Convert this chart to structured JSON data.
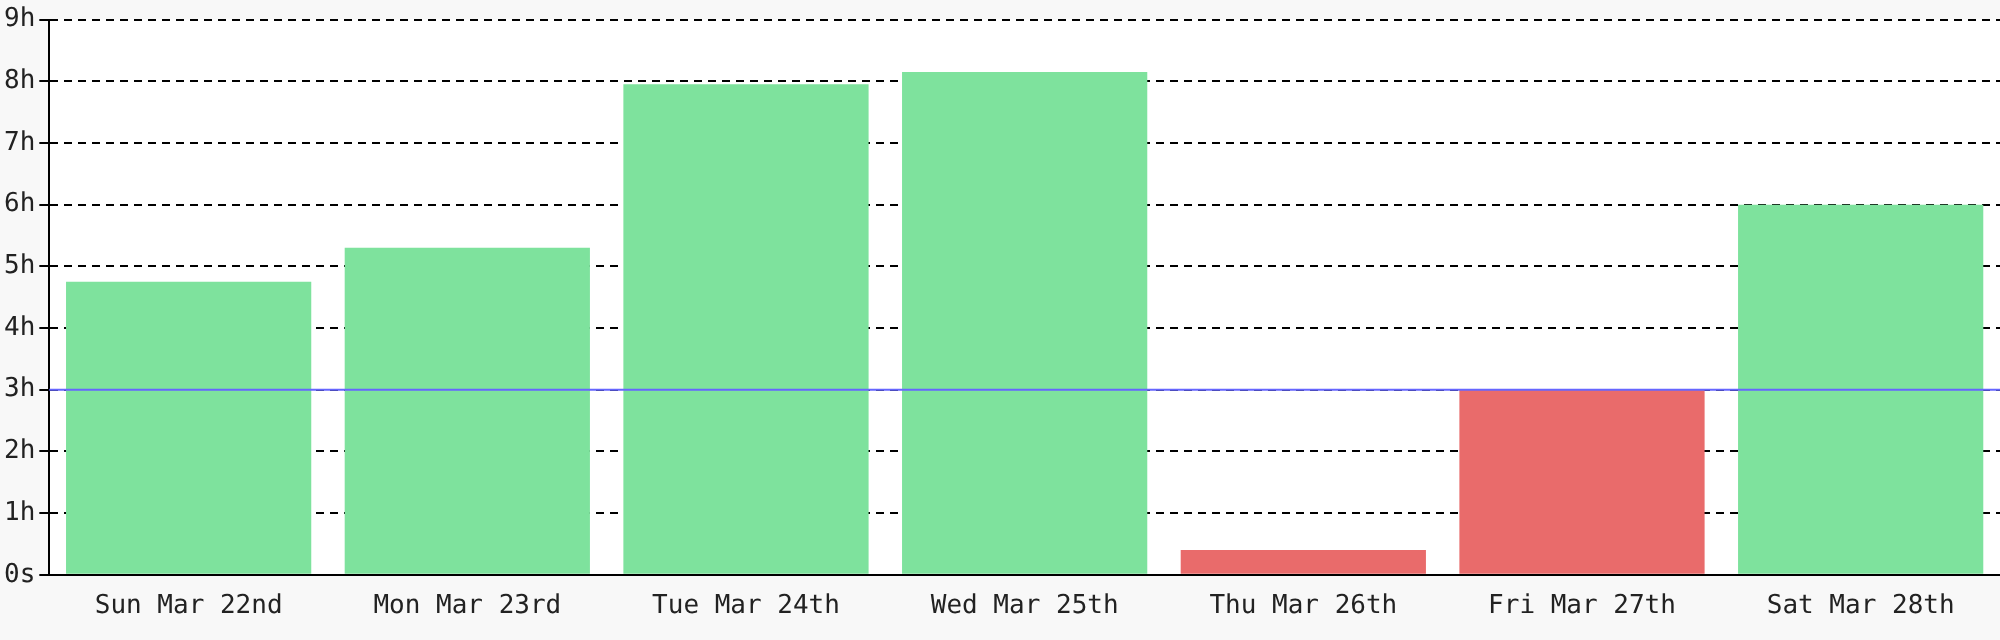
{
  "chart_data": {
    "type": "bar",
    "categories": [
      "Sun Mar 22nd",
      "Mon Mar 23rd",
      "Tue Mar 24th",
      "Wed Mar 25th",
      "Thu Mar 26th",
      "Fri Mar 27th",
      "Sat Mar 28th"
    ],
    "values": [
      4.75,
      5.3,
      7.95,
      8.15,
      0.4,
      3,
      6
    ],
    "colors": [
      "#7ee29d",
      "#7ee29d",
      "#7ee29d",
      "#7ee29d",
      "#e96b6b",
      "#e96b6b",
      "#7ee29d"
    ],
    "ylim": [
      0,
      9
    ],
    "yticks": [
      {
        "value": 0,
        "label": "0s"
      },
      {
        "value": 1,
        "label": "1h"
      },
      {
        "value": 2,
        "label": "2h"
      },
      {
        "value": 3,
        "label": "3h"
      },
      {
        "value": 4,
        "label": "4h"
      },
      {
        "value": 5,
        "label": "5h"
      },
      {
        "value": 6,
        "label": "6h"
      },
      {
        "value": 7,
        "label": "7h"
      },
      {
        "value": 8,
        "label": "8h"
      },
      {
        "value": 9,
        "label": "9h"
      }
    ],
    "grid": "y",
    "ref_lines": [
      {
        "axis": "y",
        "value": 3,
        "color": "#6666ff"
      }
    ]
  }
}
